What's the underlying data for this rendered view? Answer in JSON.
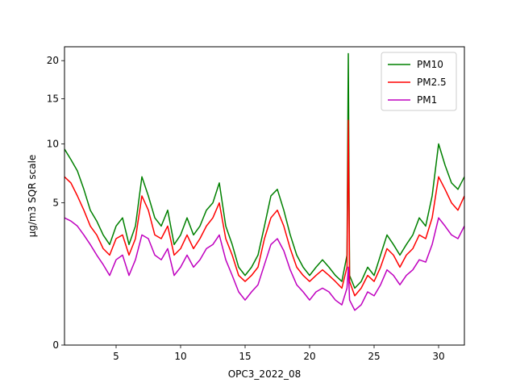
{
  "chart_data": {
    "type": "line",
    "title": "",
    "xlabel": "OPC3_2022_08",
    "ylabel": "µg/m3 SQR scale",
    "xlim": [
      1,
      32
    ],
    "ylim": [
      0,
      22
    ],
    "y_scale": "sqrt",
    "grid": false,
    "legend_position": "top-right",
    "x_ticks": [
      5,
      10,
      15,
      20,
      25,
      30
    ],
    "x_tick_labels": [
      "5",
      "10",
      "15",
      "20",
      "25",
      "30"
    ],
    "y_ticks": [
      0,
      5,
      10,
      15,
      20
    ],
    "y_tick_labels": [
      "0",
      "5",
      "10",
      "15",
      "20"
    ],
    "x": [
      1,
      1.5,
      2,
      2.5,
      3,
      3.5,
      4,
      4.5,
      5,
      5.5,
      6,
      6.5,
      7,
      7.5,
      8,
      8.5,
      9,
      9.5,
      10,
      10.5,
      11,
      11.5,
      12,
      12.5,
      13,
      13.5,
      14,
      14.5,
      15,
      15.5,
      16,
      16.5,
      17,
      17.5,
      18,
      18.5,
      19,
      19.5,
      20,
      20.5,
      21,
      21.5,
      22,
      22.5,
      22.9,
      23,
      23.1,
      23.5,
      24,
      24.5,
      25,
      25.5,
      26,
      26.5,
      27,
      27.5,
      28,
      28.5,
      29,
      29.5,
      30,
      30.5,
      31,
      31.5,
      32
    ],
    "series": [
      {
        "name": "PM10",
        "color": "#008000",
        "values": [
          9.5,
          8.5,
          7.5,
          6,
          4.5,
          3.8,
          3,
          2.5,
          3.5,
          4,
          2.5,
          3.5,
          7,
          5.5,
          4,
          3.5,
          4.5,
          2.5,
          3,
          4,
          3,
          3.5,
          4.5,
          5,
          6.5,
          3.5,
          2.5,
          1.5,
          1.2,
          1.5,
          2,
          3.5,
          5.5,
          6,
          4.5,
          3,
          2,
          1.5,
          1.2,
          1.5,
          1.8,
          1.5,
          1.2,
          1,
          2,
          21,
          1.2,
          0.8,
          1,
          1.5,
          1.2,
          2,
          3,
          2.5,
          2,
          2.5,
          3,
          4,
          3.5,
          5.5,
          10,
          8,
          6.5,
          6,
          7
        ]
      },
      {
        "name": "PM2.5",
        "color": "#ff0000",
        "values": [
          7,
          6.5,
          5.5,
          4.5,
          3.5,
          3,
          2.3,
          2,
          2.8,
          3,
          2,
          2.8,
          5.5,
          4.5,
          3,
          2.8,
          3.5,
          2,
          2.3,
          3,
          2.3,
          2.8,
          3.5,
          4,
          5,
          2.8,
          2,
          1.2,
          1,
          1.2,
          1.5,
          2.8,
          4,
          4.5,
          3.5,
          2.3,
          1.5,
          1.2,
          1,
          1.2,
          1.4,
          1.2,
          1,
          0.8,
          1.5,
          12.5,
          1,
          0.6,
          0.8,
          1.2,
          1,
          1.5,
          2.3,
          2,
          1.5,
          2,
          2.3,
          3,
          2.8,
          4,
          7,
          6,
          5,
          4.5,
          5.5
        ]
      },
      {
        "name": "PM1",
        "color": "#bf00bf",
        "values": [
          4,
          3.8,
          3.5,
          3,
          2.5,
          2,
          1.6,
          1.2,
          1.8,
          2,
          1.2,
          1.8,
          3,
          2.8,
          2,
          1.8,
          2.3,
          1.2,
          1.5,
          2,
          1.5,
          1.8,
          2.3,
          2.5,
          3,
          1.8,
          1.2,
          0.7,
          0.5,
          0.7,
          0.9,
          1.6,
          2.5,
          2.8,
          2.2,
          1.4,
          0.9,
          0.7,
          0.5,
          0.7,
          0.8,
          0.7,
          0.5,
          0.4,
          0.8,
          1.5,
          0.5,
          0.3,
          0.4,
          0.7,
          0.6,
          0.9,
          1.4,
          1.2,
          0.9,
          1.2,
          1.4,
          1.8,
          1.7,
          2.5,
          4,
          3.5,
          3,
          2.8,
          3.5
        ]
      }
    ]
  }
}
